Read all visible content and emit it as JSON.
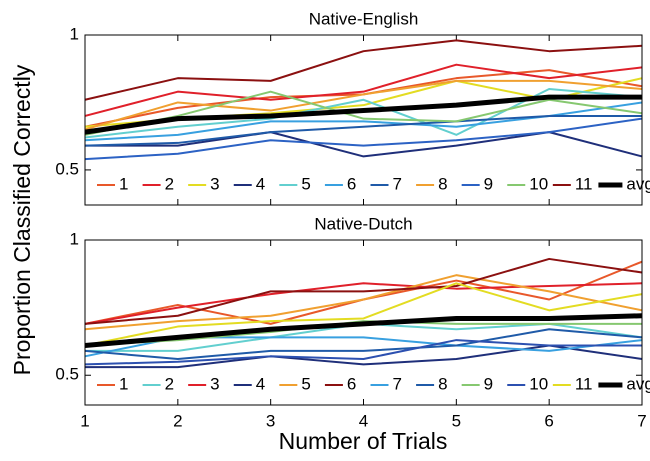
{
  "y_label": "Proportion Classified Correctly",
  "x_label": "Number of Trials",
  "chart_data": [
    {
      "type": "line",
      "title": "Native-English",
      "x": [
        1,
        2,
        3,
        4,
        5,
        6,
        7
      ],
      "xlim": [
        1,
        7
      ],
      "ylim": [
        0.37,
        1
      ],
      "yticks": [
        0.5,
        1
      ],
      "series": [
        {
          "name": "1",
          "color": "#e8582a",
          "values": [
            0.66,
            0.73,
            0.77,
            0.78,
            0.84,
            0.87,
            0.81
          ]
        },
        {
          "name": "2",
          "color": "#e0202a",
          "values": [
            0.7,
            0.79,
            0.76,
            0.79,
            0.89,
            0.84,
            0.88
          ]
        },
        {
          "name": "3",
          "color": "#e3dc22",
          "values": [
            0.66,
            0.69,
            0.71,
            0.74,
            0.83,
            0.76,
            0.84
          ]
        },
        {
          "name": "4",
          "color": "#1f2f7a",
          "values": [
            0.59,
            0.59,
            0.64,
            0.55,
            0.59,
            0.64,
            0.55
          ]
        },
        {
          "name": "5",
          "color": "#62cfcf",
          "values": [
            0.62,
            0.66,
            0.69,
            0.76,
            0.63,
            0.8,
            0.77
          ]
        },
        {
          "name": "6",
          "color": "#38a0e0",
          "values": [
            0.61,
            0.63,
            0.68,
            0.68,
            0.66,
            0.7,
            0.75
          ]
        },
        {
          "name": "7",
          "color": "#1f5aa8",
          "values": [
            0.59,
            0.6,
            0.64,
            0.66,
            0.68,
            0.7,
            0.7
          ]
        },
        {
          "name": "8",
          "color": "#f0a030",
          "values": [
            0.65,
            0.75,
            0.72,
            0.78,
            0.83,
            0.83,
            0.8
          ]
        },
        {
          "name": "9",
          "color": "#2c62c4",
          "values": [
            0.54,
            0.56,
            0.61,
            0.59,
            0.61,
            0.64,
            0.69
          ]
        },
        {
          "name": "10",
          "color": "#86c870",
          "values": [
            0.63,
            0.7,
            0.79,
            0.69,
            0.68,
            0.76,
            0.71
          ]
        },
        {
          "name": "11",
          "color": "#8b1010",
          "values": [
            0.76,
            0.84,
            0.83,
            0.94,
            0.98,
            0.94,
            0.96
          ]
        },
        {
          "name": "avg",
          "color": "#000000",
          "values": [
            0.64,
            0.69,
            0.7,
            0.72,
            0.74,
            0.77,
            0.77
          ]
        }
      ]
    },
    {
      "type": "line",
      "title": "Native-Dutch",
      "x": [
        1,
        2,
        3,
        4,
        5,
        6,
        7
      ],
      "xlim": [
        1,
        7
      ],
      "xticks": [
        1,
        2,
        3,
        4,
        5,
        6,
        7
      ],
      "ylim": [
        0.39,
        1
      ],
      "yticks": [
        0.5,
        1
      ],
      "series": [
        {
          "name": "1",
          "color": "#e8582a",
          "values": [
            0.69,
            0.76,
            0.69,
            0.78,
            0.85,
            0.78,
            0.92
          ]
        },
        {
          "name": "2",
          "color": "#62cfcf",
          "values": [
            0.59,
            0.59,
            0.64,
            0.69,
            0.67,
            0.69,
            0.64
          ]
        },
        {
          "name": "3",
          "color": "#e0202a",
          "values": [
            0.69,
            0.75,
            0.8,
            0.84,
            0.82,
            0.83,
            0.84
          ]
        },
        {
          "name": "4",
          "color": "#1f2f7a",
          "values": [
            0.53,
            0.53,
            0.57,
            0.54,
            0.56,
            0.61,
            0.56
          ]
        },
        {
          "name": "5",
          "color": "#f0a030",
          "values": [
            0.67,
            0.7,
            0.72,
            0.78,
            0.87,
            0.81,
            0.74
          ]
        },
        {
          "name": "6",
          "color": "#8b1010",
          "values": [
            0.69,
            0.72,
            0.81,
            0.81,
            0.83,
            0.93,
            0.88
          ]
        },
        {
          "name": "7",
          "color": "#38a0e0",
          "values": [
            0.57,
            0.64,
            0.64,
            0.64,
            0.61,
            0.59,
            0.63
          ]
        },
        {
          "name": "8",
          "color": "#1f5aa8",
          "values": [
            0.59,
            0.56,
            0.59,
            0.59,
            0.61,
            0.67,
            0.64
          ]
        },
        {
          "name": "9",
          "color": "#86c870",
          "values": [
            0.61,
            0.63,
            0.66,
            0.7,
            0.69,
            0.69,
            0.69
          ]
        },
        {
          "name": "10",
          "color": "#2c50b0",
          "values": [
            0.54,
            0.55,
            0.57,
            0.56,
            0.63,
            0.61,
            0.61
          ]
        },
        {
          "name": "11",
          "color": "#e3dc22",
          "values": [
            0.61,
            0.68,
            0.7,
            0.71,
            0.84,
            0.74,
            0.8
          ]
        },
        {
          "name": "avg",
          "color": "#000000",
          "values": [
            0.61,
            0.64,
            0.67,
            0.69,
            0.71,
            0.71,
            0.72
          ]
        }
      ]
    }
  ]
}
